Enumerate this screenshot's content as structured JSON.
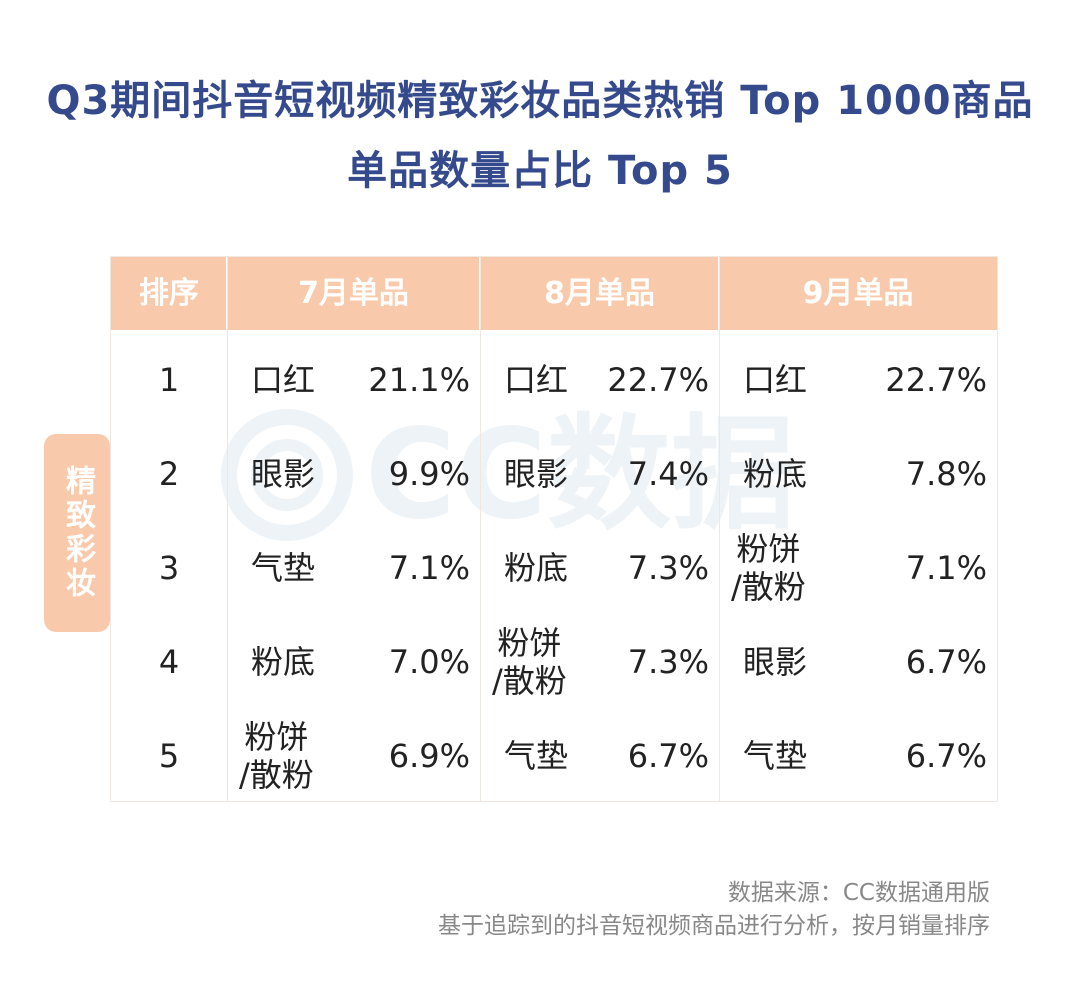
{
  "title": {
    "line1": "Q3期间抖音短视频精致彩妆品类热销 Top 1000商品",
    "line2": "单品数量占比 Top 5"
  },
  "watermark": "CC数据",
  "side_label": "精致彩妆",
  "colors": {
    "title": "#354a8c",
    "header_bg": "#f8c9aa",
    "header_text": "#ffffff",
    "border": "#f2e7df",
    "watermark": "#eef3f8"
  },
  "chart_data": {
    "type": "table",
    "columns": [
      "排序",
      "7月单品",
      "8月单品",
      "9月单品"
    ],
    "rows": [
      {
        "rank": "1",
        "m7": {
          "name": "口红",
          "pct": "21.1%"
        },
        "m8": {
          "name": "口红",
          "pct": "22.7%"
        },
        "m9": {
          "name": "口红",
          "pct": "22.7%"
        }
      },
      {
        "rank": "2",
        "m7": {
          "name": "眼影",
          "pct": "9.9%"
        },
        "m8": {
          "name": "眼影",
          "pct": "7.4%"
        },
        "m9": {
          "name": "粉底",
          "pct": "7.8%"
        }
      },
      {
        "rank": "3",
        "m7": {
          "name": "气垫",
          "pct": "7.1%"
        },
        "m8": {
          "name": "粉底",
          "pct": "7.3%"
        },
        "m9": {
          "name": "粉饼/散粉",
          "pct": "7.1%"
        }
      },
      {
        "rank": "4",
        "m7": {
          "name": "粉底",
          "pct": "7.0%"
        },
        "m8": {
          "name": "粉饼/散粉",
          "pct": "7.3%"
        },
        "m9": {
          "name": "眼影",
          "pct": "6.7%"
        }
      },
      {
        "rank": "5",
        "m7": {
          "name": "粉饼/散粉",
          "pct": "6.9%"
        },
        "m8": {
          "name": "气垫",
          "pct": "6.7%"
        },
        "m9": {
          "name": "气垫",
          "pct": "6.7%"
        }
      }
    ]
  },
  "source": {
    "line1": "数据来源：CC数据通用版",
    "line2": "基于追踪到的抖音短视频商品进行分析，按月销量排序"
  }
}
